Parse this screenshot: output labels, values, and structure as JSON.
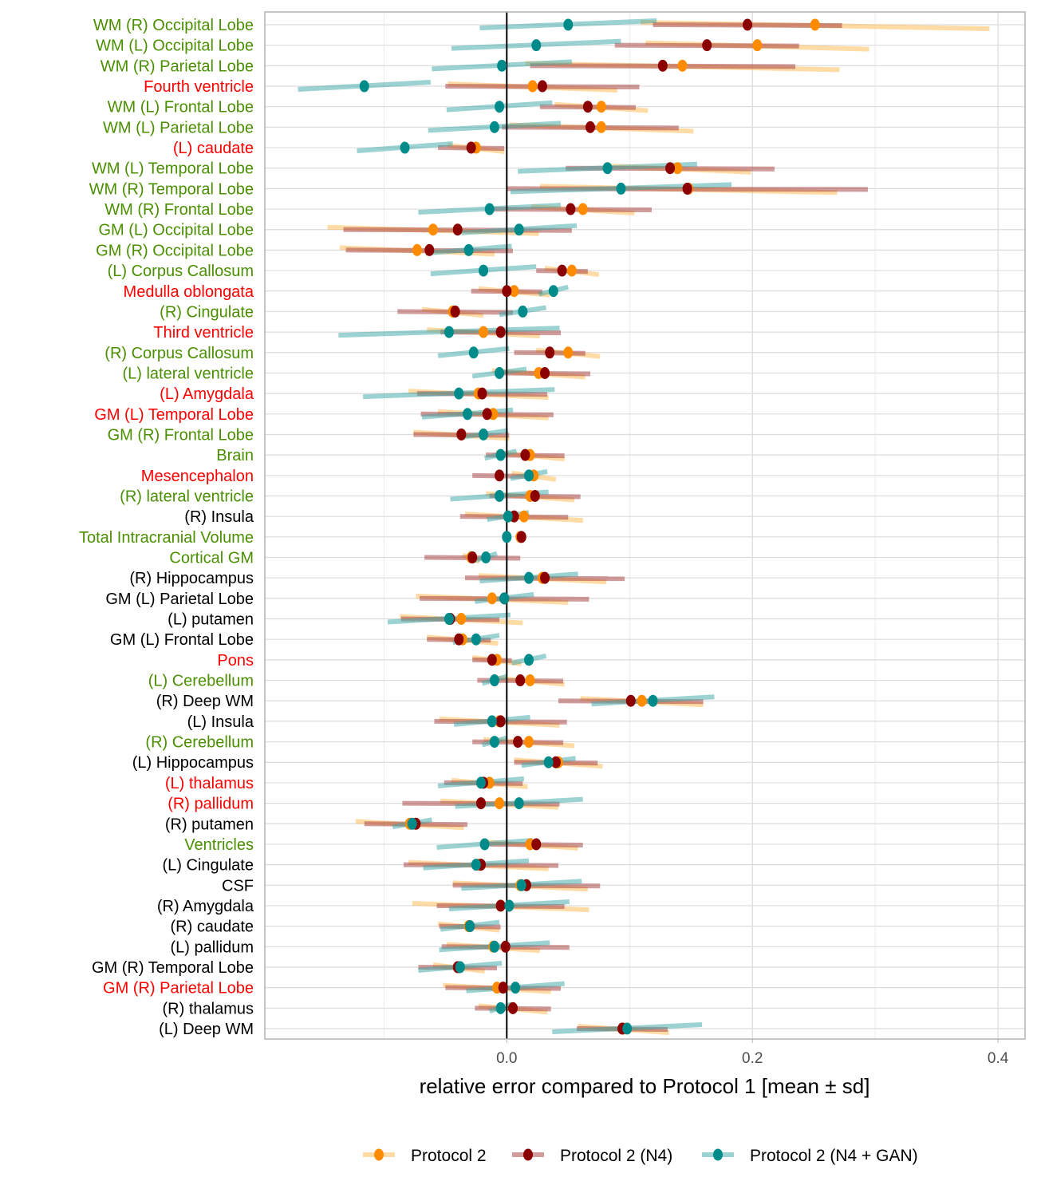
{
  "chart_data": {
    "type": "dot-errorbar",
    "xlabel": "relative error compared to Protocol 1 [mean ± sd]",
    "xlim": [
      -0.197,
      0.422
    ],
    "xticks": [
      0.0,
      0.2,
      0.4
    ],
    "xtick_labels": [
      "0.0",
      "0.2",
      "0.4"
    ],
    "grid": true,
    "reference_line_x": 0,
    "legend_position": "bottom",
    "label_colors": {
      "green": "#4a8f00",
      "red": "#ff0000",
      "black": "#000000"
    },
    "series": [
      {
        "name": "Protocol 2",
        "color": "#ff8c00"
      },
      {
        "name": "Protocol 2 (N4)",
        "color": "#8b0000"
      },
      {
        "name": "Protocol 2 (N4 + GAN)",
        "color": "#008b8b"
      }
    ],
    "rows": [
      {
        "label": "WM (R) Occipital Lobe",
        "group": "green",
        "values": [
          [
            0.251,
            0.142
          ],
          [
            0.196,
            0.077
          ],
          [
            0.05,
            0.072
          ]
        ]
      },
      {
        "label": "WM (L) Occipital Lobe",
        "group": "green",
        "values": [
          [
            0.204,
            0.091
          ],
          [
            0.163,
            0.075
          ],
          [
            0.024,
            0.069
          ]
        ]
      },
      {
        "label": "WM (R) Parietal Lobe",
        "group": "green",
        "values": [
          [
            0.143,
            0.128
          ],
          [
            0.127,
            0.108
          ],
          [
            -0.004,
            0.057
          ]
        ]
      },
      {
        "label": "Fourth ventricle",
        "group": "red",
        "values": [
          [
            0.021,
            0.069
          ],
          [
            0.029,
            0.079
          ],
          [
            -0.116,
            0.054
          ]
        ]
      },
      {
        "label": "WM (L) Frontal Lobe",
        "group": "green",
        "values": [
          [
            0.077,
            0.038
          ],
          [
            0.066,
            0.039
          ],
          [
            -0.006,
            0.043
          ]
        ]
      },
      {
        "label": "WM (L) Parietal Lobe",
        "group": "green",
        "values": [
          [
            0.077,
            0.075
          ],
          [
            0.068,
            0.072
          ],
          [
            -0.01,
            0.054
          ]
        ]
      },
      {
        "label": "(L) caudate",
        "group": "red",
        "values": [
          [
            -0.025,
            0.023
          ],
          [
            -0.029,
            0.027
          ],
          [
            -0.083,
            0.039
          ]
        ]
      },
      {
        "label": "WM (L) Temporal Lobe",
        "group": "green",
        "values": [
          [
            0.139,
            0.06
          ],
          [
            0.133,
            0.085
          ],
          [
            0.082,
            0.073
          ]
        ]
      },
      {
        "label": "WM (R) Temporal Lobe",
        "group": "green",
        "values": [
          [
            0.148,
            0.121
          ],
          [
            0.147,
            0.147
          ],
          [
            0.093,
            0.09
          ]
        ]
      },
      {
        "label": "WM (R) Frontal Lobe",
        "group": "green",
        "values": [
          [
            0.062,
            0.042
          ],
          [
            0.052,
            0.066
          ],
          [
            -0.014,
            0.058
          ]
        ]
      },
      {
        "label": "GM (L) Occipital Lobe",
        "group": "green",
        "values": [
          [
            -0.06,
            0.086
          ],
          [
            -0.04,
            0.093
          ],
          [
            0.01,
            0.047
          ]
        ]
      },
      {
        "label": "GM (R) Occipital Lobe",
        "group": "green",
        "values": [
          [
            -0.073,
            0.063
          ],
          [
            -0.063,
            0.068
          ],
          [
            -0.031,
            0.035
          ]
        ]
      },
      {
        "label": "(L) Corpus Callosum",
        "group": "green",
        "values": [
          [
            0.053,
            0.022
          ],
          [
            0.045,
            0.021
          ],
          [
            -0.019,
            0.043
          ]
        ]
      },
      {
        "label": "Medulla oblongata",
        "group": "red",
        "values": [
          [
            0.006,
            0.029
          ],
          [
            0.0,
            0.029
          ],
          [
            0.038,
            0.012
          ]
        ]
      },
      {
        "label": "(R) Cingulate",
        "group": "green",
        "values": [
          [
            -0.044,
            0.025
          ],
          [
            -0.042,
            0.047
          ],
          [
            0.013,
            0.019
          ]
        ]
      },
      {
        "label": "Third ventricle",
        "group": "red",
        "values": [
          [
            -0.019,
            0.046
          ],
          [
            -0.005,
            0.049
          ],
          [
            -0.047,
            0.09
          ]
        ]
      },
      {
        "label": "(R) Corpus Callosum",
        "group": "green",
        "values": [
          [
            0.05,
            0.026
          ],
          [
            0.035,
            0.029
          ],
          [
            -0.027,
            0.029
          ]
        ]
      },
      {
        "label": "(L) lateral ventricle",
        "group": "green",
        "values": [
          [
            0.026,
            0.038
          ],
          [
            0.031,
            0.037
          ],
          [
            -0.006,
            0.022
          ]
        ]
      },
      {
        "label": "(L) Amygdala",
        "group": "red",
        "values": [
          [
            -0.023,
            0.057
          ],
          [
            -0.02,
            0.053
          ],
          [
            -0.039,
            0.078
          ]
        ]
      },
      {
        "label": "GM (L) Temporal Lobe",
        "group": "red",
        "values": [
          [
            -0.011,
            0.045
          ],
          [
            -0.016,
            0.054
          ],
          [
            -0.032,
            0.037
          ]
        ]
      },
      {
        "label": "GM (R) Frontal Lobe",
        "group": "green",
        "values": [
          [
            -0.037,
            0.039
          ],
          [
            -0.037,
            0.039
          ],
          [
            -0.019,
            0.02
          ]
        ]
      },
      {
        "label": "Brain",
        "group": "green",
        "values": [
          [
            0.019,
            0.028
          ],
          [
            0.015,
            0.032
          ],
          [
            -0.005,
            0.013
          ]
        ]
      },
      {
        "label": "Mesencephalon",
        "group": "red",
        "values": [
          [
            0.022,
            0.018
          ],
          [
            -0.006,
            0.022
          ],
          [
            0.018,
            0.015
          ]
        ]
      },
      {
        "label": "(R) lateral ventricle",
        "group": "green",
        "values": [
          [
            0.019,
            0.036
          ],
          [
            0.023,
            0.037
          ],
          [
            -0.006,
            0.04
          ]
        ]
      },
      {
        "label": "(R) Insula",
        "group": "black",
        "values": [
          [
            0.014,
            0.048
          ],
          [
            0.006,
            0.044
          ],
          [
            0.001,
            0.017
          ]
        ]
      },
      {
        "label": "Total Intracranial Volume",
        "group": "green",
        "values": [
          [
            0.011,
            0.003
          ],
          [
            0.012,
            0.003
          ],
          [
            0.0,
            0.001
          ]
        ]
      },
      {
        "label": "Cortical GM",
        "group": "green",
        "values": [
          [
            -0.029,
            0.007
          ],
          [
            -0.028,
            0.039
          ],
          [
            -0.017,
            0.009
          ]
        ]
      },
      {
        "label": "(R) Hippocampus",
        "group": "black",
        "values": [
          [
            0.029,
            0.052
          ],
          [
            0.031,
            0.065
          ],
          [
            0.018,
            0.04
          ]
        ]
      },
      {
        "label": "GM (L) Parietal Lobe",
        "group": "black",
        "values": [
          [
            -0.012,
            0.062
          ],
          [
            -0.002,
            0.069
          ],
          [
            -0.002,
            0.024
          ]
        ]
      },
      {
        "label": "(L) putamen",
        "group": "black",
        "values": [
          [
            -0.037,
            0.05
          ],
          [
            -0.046,
            0.04
          ],
          [
            -0.047,
            0.05
          ]
        ]
      },
      {
        "label": "GM (L) Frontal Lobe",
        "group": "black",
        "values": [
          [
            -0.036,
            0.029
          ],
          [
            -0.039,
            0.026
          ],
          [
            -0.025,
            0.019
          ]
        ]
      },
      {
        "label": "Pons",
        "group": "red",
        "values": [
          [
            -0.008,
            0.02
          ],
          [
            -0.012,
            0.016
          ],
          [
            0.018,
            0.014
          ]
        ]
      },
      {
        "label": "(L) Cerebellum",
        "group": "green",
        "values": [
          [
            0.019,
            0.028
          ],
          [
            0.011,
            0.035
          ],
          [
            -0.01,
            0.01
          ]
        ]
      },
      {
        "label": "(R) Deep WM",
        "group": "black",
        "values": [
          [
            0.11,
            0.05
          ],
          [
            0.101,
            0.059
          ],
          [
            0.119,
            0.05
          ]
        ]
      },
      {
        "label": "(L) Insula",
        "group": "black",
        "values": [
          [
            -0.006,
            0.049
          ],
          [
            -0.005,
            0.054
          ],
          [
            -0.012,
            0.031
          ]
        ]
      },
      {
        "label": "(R) Cerebellum",
        "group": "green",
        "values": [
          [
            0.018,
            0.037
          ],
          [
            0.009,
            0.037
          ],
          [
            -0.01,
            0.01
          ]
        ]
      },
      {
        "label": "(L) Hippocampus",
        "group": "black",
        "values": [
          [
            0.042,
            0.036
          ],
          [
            0.04,
            0.034
          ],
          [
            0.034,
            0.022
          ]
        ]
      },
      {
        "label": "(L) thalamus",
        "group": "red",
        "values": [
          [
            -0.014,
            0.031
          ],
          [
            -0.019,
            0.032
          ],
          [
            -0.021,
            0.035
          ]
        ]
      },
      {
        "label": "(R) pallidum",
        "group": "red",
        "values": [
          [
            -0.006,
            0.048
          ],
          [
            -0.021,
            0.064
          ],
          [
            0.01,
            0.052
          ]
        ]
      },
      {
        "label": "(R) putamen",
        "group": "black",
        "values": [
          [
            -0.079,
            0.044
          ],
          [
            -0.074,
            0.042
          ],
          [
            -0.077,
            0.016
          ]
        ]
      },
      {
        "label": "Ventricles",
        "group": "green",
        "values": [
          [
            0.019,
            0.039
          ],
          [
            0.024,
            0.038
          ],
          [
            -0.018,
            0.039
          ]
        ]
      },
      {
        "label": "(L) Cingulate",
        "group": "black",
        "values": [
          [
            -0.023,
            0.057
          ],
          [
            -0.021,
            0.063
          ],
          [
            -0.025,
            0.043
          ]
        ]
      },
      {
        "label": "CSF",
        "group": "black",
        "values": [
          [
            0.011,
            0.055
          ],
          [
            0.016,
            0.06
          ],
          [
            0.012,
            0.049
          ]
        ]
      },
      {
        "label": "(R) Amygdala",
        "group": "black",
        "values": [
          [
            -0.005,
            0.072
          ],
          [
            -0.005,
            0.052
          ],
          [
            0.002,
            0.049
          ]
        ]
      },
      {
        "label": "(R) caudate",
        "group": "black",
        "values": [
          [
            -0.031,
            0.025
          ],
          [
            -0.03,
            0.025
          ],
          [
            -0.03,
            0.024
          ]
        ]
      },
      {
        "label": "(L) pallidum",
        "group": "black",
        "values": [
          [
            -0.011,
            0.038
          ],
          [
            -0.001,
            0.052
          ],
          [
            -0.01,
            0.045
          ]
        ]
      },
      {
        "label": "GM (R) Temporal Lobe",
        "group": "black",
        "values": [
          [
            -0.039,
            0.021
          ],
          [
            -0.04,
            0.032
          ],
          [
            -0.038,
            0.034
          ]
        ]
      },
      {
        "label": "GM (R) Parietal Lobe",
        "group": "red",
        "values": [
          [
            -0.008,
            0.044
          ],
          [
            -0.003,
            0.047
          ],
          [
            0.007,
            0.04
          ]
        ]
      },
      {
        "label": "(R) thalamus",
        "group": "black",
        "values": [
          [
            0.005,
            0.028
          ],
          [
            0.005,
            0.031
          ],
          [
            -0.005,
            0.009
          ]
        ]
      },
      {
        "label": "(L) Deep WM",
        "group": "black",
        "values": [
          [
            0.095,
            0.037
          ],
          [
            0.094,
            0.037
          ],
          [
            0.098,
            0.061
          ]
        ]
      }
    ]
  }
}
